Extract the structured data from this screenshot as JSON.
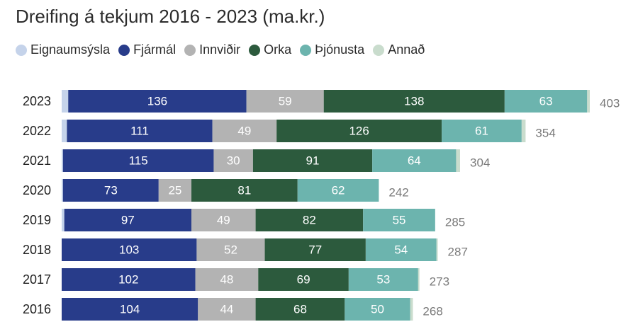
{
  "chart_data": {
    "type": "bar",
    "orientation": "horizontal",
    "stacked": true,
    "title": "Dreifing á tekjum 2016 - 2023 (ma.kr.)",
    "categories": [
      "2023",
      "2022",
      "2021",
      "2020",
      "2019",
      "2018",
      "2017",
      "2016"
    ],
    "series": [
      {
        "name": "Eignaumsýsla",
        "color": "#c5d3ea",
        "values": [
          5,
          4,
          1,
          1,
          2,
          0,
          0,
          0
        ],
        "show_labels": false
      },
      {
        "name": "Fjármál",
        "color": "#283c8a",
        "values": [
          136,
          111,
          115,
          73,
          97,
          103,
          102,
          104
        ],
        "show_labels": true
      },
      {
        "name": "Innviðir",
        "color": "#b3b3b3",
        "values": [
          59,
          49,
          30,
          25,
          49,
          52,
          48,
          44
        ],
        "show_labels": true
      },
      {
        "name": "Orka",
        "color": "#2c5a3d",
        "values": [
          138,
          126,
          91,
          81,
          82,
          77,
          69,
          68
        ],
        "show_labels": true
      },
      {
        "name": "Þjónusta",
        "color": "#6cb4ae",
        "values": [
          63,
          61,
          64,
          62,
          55,
          54,
          53,
          50
        ],
        "show_labels": true
      },
      {
        "name": "Annað",
        "color": "#c9dccd",
        "values": [
          2,
          3,
          3,
          0,
          0,
          1,
          1,
          2
        ],
        "show_labels": false
      }
    ],
    "totals": [
      403,
      354,
      304,
      242,
      285,
      287,
      273,
      268
    ],
    "xlim": [
      0,
      403
    ],
    "legend_position": "top-left",
    "grid": false
  }
}
